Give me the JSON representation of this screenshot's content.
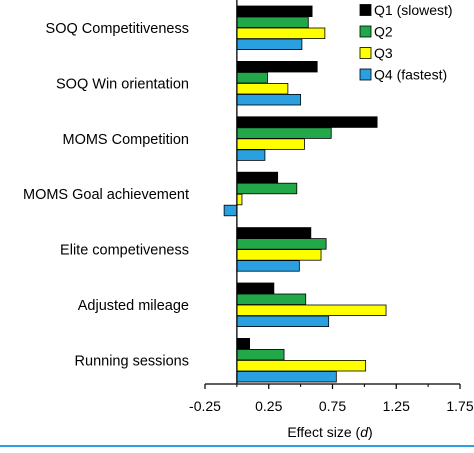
{
  "chart_data": {
    "type": "bar",
    "orientation": "horizontal",
    "categories": [
      "SOQ Competitiveness",
      "SOQ Win orientation",
      "MOMS Competition",
      "MOMS Goal achievement",
      "Elite competiveness",
      "Adjusted mileage",
      "Running sessions"
    ],
    "series": [
      {
        "name": "Q1 (slowest)",
        "color": "#000000",
        "values": [
          0.59,
          0.63,
          1.1,
          0.32,
          0.58,
          0.29,
          0.1
        ]
      },
      {
        "name": "Q2",
        "color": "#22a848",
        "values": [
          0.56,
          0.24,
          0.74,
          0.47,
          0.7,
          0.54,
          0.37
        ]
      },
      {
        "name": "Q3",
        "color": "#ffff00",
        "values": [
          0.69,
          0.4,
          0.53,
          0.04,
          0.66,
          1.17,
          1.01
        ]
      },
      {
        "name": "Q4 (fastest)",
        "color": "#2aa0e0",
        "values": [
          0.51,
          0.5,
          0.22,
          -0.1,
          0.49,
          0.72,
          0.78
        ]
      }
    ],
    "xlim": [
      -0.25,
      1.75
    ],
    "xticks": [
      "-0.25",
      "0.25",
      "0.75",
      "1.25",
      "1.75"
    ],
    "xlabel": "Effect size (",
    "xlabel_italic": "d",
    "xlabel_end": ")",
    "legend_position": "top-right",
    "grid": false
  }
}
